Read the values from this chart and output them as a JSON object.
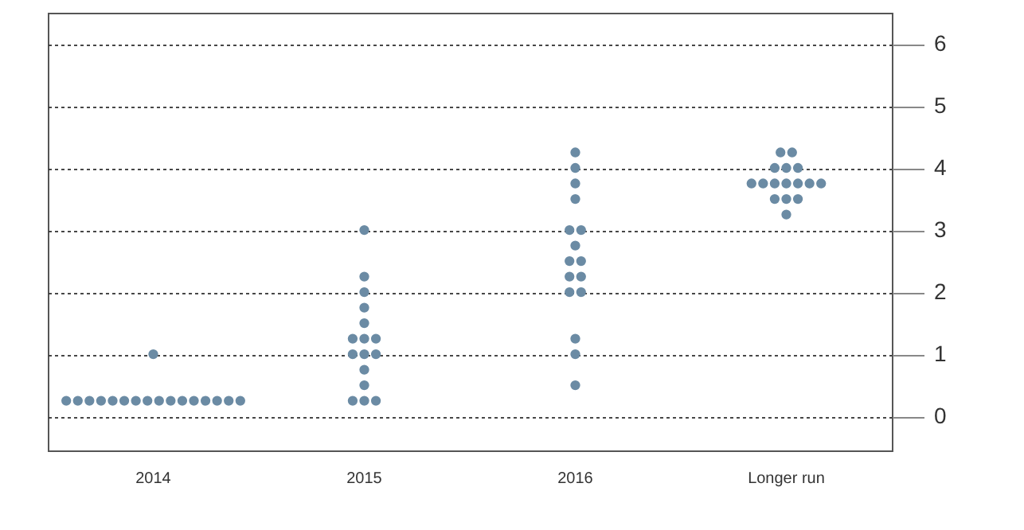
{
  "chart_data": {
    "type": "scatter",
    "categories": [
      "2014",
      "2015",
      "2016",
      "Longer run"
    ],
    "series": [
      {
        "color": "#6b8ba4",
        "values": [
          0.25,
          3.0,
          4.25,
          4.25
        ]
      },
      {
        "color": "#6b8ba4",
        "values": [
          0.25,
          2.25,
          4.0,
          4.25
        ]
      },
      {
        "color": "#6b8ba4",
        "values": [
          0.25,
          2.0,
          3.75,
          4.0
        ]
      },
      {
        "color": "#6b8ba4",
        "values": [
          0.25,
          1.75,
          3.5,
          4.0
        ]
      },
      {
        "color": "#6b8ba4",
        "values": [
          0.25,
          1.5,
          3.0,
          4.0
        ]
      },
      {
        "color": "#6b8ba4",
        "values": [
          0.25,
          1.25,
          3.0,
          3.75
        ]
      },
      {
        "color": "#6b8ba4",
        "values": [
          0.25,
          1.25,
          2.75,
          3.75
        ]
      },
      {
        "color": "#6b8ba4",
        "values": [
          0.25,
          1.25,
          2.5,
          3.75
        ]
      },
      {
        "color": "#6b8ba4",
        "values": [
          0.25,
          1.0,
          2.5,
          3.75
        ]
      },
      {
        "color": "#6b8ba4",
        "values": [
          0.25,
          1.0,
          2.25,
          3.75
        ]
      },
      {
        "color": "#6b8ba4",
        "values": [
          0.25,
          1.0,
          2.25,
          3.75
        ]
      },
      {
        "color": "#6b8ba4",
        "values": [
          0.25,
          0.75,
          2.0,
          3.75
        ]
      },
      {
        "color": "#6b8ba4",
        "values": [
          0.25,
          0.5,
          2.0,
          3.5
        ]
      },
      {
        "color": "#6b8ba4",
        "values": [
          0.25,
          0.25,
          1.25,
          3.5
        ]
      },
      {
        "color": "#6b8ba4",
        "values": [
          0.25,
          0.25,
          1.0,
          3.5
        ]
      },
      {
        "color": "#6b8ba4",
        "values": [
          0.25,
          0.25,
          0.5,
          3.25
        ]
      },
      {
        "color": "#6b8ba4",
        "values": [
          1.0,
          null,
          null,
          null
        ]
      }
    ],
    "ylim": [
      -0.55,
      6.5
    ],
    "yticks": [
      0,
      1,
      2,
      3,
      4,
      5,
      6
    ],
    "grid": "y",
    "marker": "circle"
  }
}
